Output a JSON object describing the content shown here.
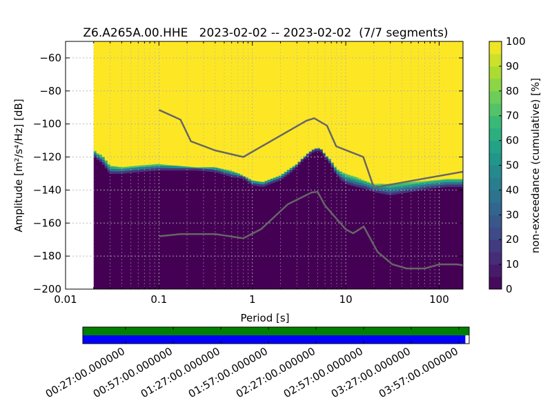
{
  "chart_data": [
    {
      "type": "heatmap",
      "title": "Z6.A265A.00.HHE   2023-02-02 -- 2023-02-02  (7/7 segments)",
      "xlabel": "Period [s]",
      "ylabel": "Amplitude [m²/s⁴/Hz] [dB]",
      "xscale": "log",
      "xlim": [
        0.01,
        180
      ],
      "ylim": [
        -200,
        -50
      ],
      "xticks": [
        0.01,
        0.1,
        1,
        10,
        100
      ],
      "xtick_labels": [
        "0.01",
        "0.1",
        "1",
        "10",
        "100"
      ],
      "yticks": [
        -60,
        -80,
        -100,
        -120,
        -140,
        -160,
        -180,
        -200
      ],
      "ytick_labels": [
        "−60",
        "−80",
        "−100",
        "−120",
        "−140",
        "−160",
        "−180",
        "−200"
      ],
      "grid": true,
      "data_start_period": 0.02,
      "ppsd_profile": {
        "period": [
          0.02,
          0.021,
          0.023,
          0.025,
          0.03,
          0.04,
          0.06,
          0.1,
          0.15,
          0.25,
          0.4,
          0.6,
          0.8,
          1.0,
          1.3,
          1.6,
          2.0,
          2.5,
          3.0,
          3.5,
          4.0,
          4.5,
          5.0,
          5.5,
          6.0,
          7.0,
          8.0,
          10.0,
          13.0,
          16.0,
          20.0,
          30.0,
          50.0,
          80.0,
          120.0,
          180.0
        ],
        "lower_edge_db": [
          -118,
          -121,
          -122,
          -124,
          -130,
          -130,
          -129,
          -128,
          -128,
          -128,
          -129,
          -132,
          -133,
          -137,
          -138,
          -136,
          -134,
          -130,
          -126,
          -122,
          -119,
          -117,
          -116,
          -117,
          -120,
          -125,
          -131,
          -136,
          -138,
          -139,
          -141,
          -143,
          -141,
          -139,
          -138,
          -138
        ],
        "upper_edge_db": [
          -114,
          -117,
          -118,
          -119,
          -125,
          -126,
          -125,
          -124,
          -125,
          -126,
          -126,
          -128,
          -131,
          -134,
          -135,
          -133,
          -131,
          -127,
          -124,
          -120,
          -117,
          -115,
          -114,
          -115,
          -118,
          -122,
          -127,
          -130,
          -132,
          -134,
          -136,
          -136,
          -135,
          -134,
          -133,
          -133
        ]
      },
      "noise_models": [
        {
          "period": [
            0.1,
            0.17,
            0.22,
            0.4,
            0.8,
            3.8,
            4.6,
            6.3,
            7.9,
            15.4,
            20.0,
            180.0
          ],
          "db": [
            -91.5,
            -97.4,
            -110.5,
            -116.0,
            -120.0,
            -98.0,
            -96.5,
            -101.0,
            -113.5,
            -120.0,
            -138.5,
            -128.9
          ]
        },
        {
          "period": [
            0.1,
            0.17,
            0.4,
            0.8,
            1.24,
            2.4,
            4.3,
            5.0,
            6.0,
            10.0,
            12.0,
            15.6,
            21.9,
            31.6,
            45.0,
            70.0,
            101.0,
            154.0,
            180.0
          ],
          "db": [
            -168.0,
            -166.7,
            -166.7,
            -169.2,
            -163.7,
            -148.6,
            -141.5,
            -141.1,
            -149.4,
            -163.8,
            -166.2,
            -162.1,
            -177.5,
            -185.0,
            -187.5,
            -187.5,
            -185.0,
            -185.0,
            -185.6
          ]
        }
      ],
      "colorbar": {
        "label": "non-exceedance (cumulative) [%]",
        "min": 0,
        "max": 100,
        "ticks": [
          0,
          10,
          20,
          30,
          40,
          50,
          60,
          70,
          80,
          90,
          100
        ],
        "colormap": "viridis"
      },
      "colors": {
        "low": "#440154",
        "high": "#fde725",
        "noise_model": "#666666",
        "grid": "#b0b0b0"
      }
    },
    {
      "type": "timeline",
      "tick_labels": [
        "00:27:00.000000",
        "00:57:00.000000",
        "01:27:00.000000",
        "01:57:00.000000",
        "02:27:00.000000",
        "02:57:00.000000",
        "03:27:00.000000",
        "03:57:00.000000"
      ],
      "tracks": [
        {
          "color": "#008000",
          "coverage": [
            0,
            1
          ]
        },
        {
          "color": "#0000ff",
          "coverage": [
            0,
            0.99
          ]
        }
      ]
    }
  ]
}
